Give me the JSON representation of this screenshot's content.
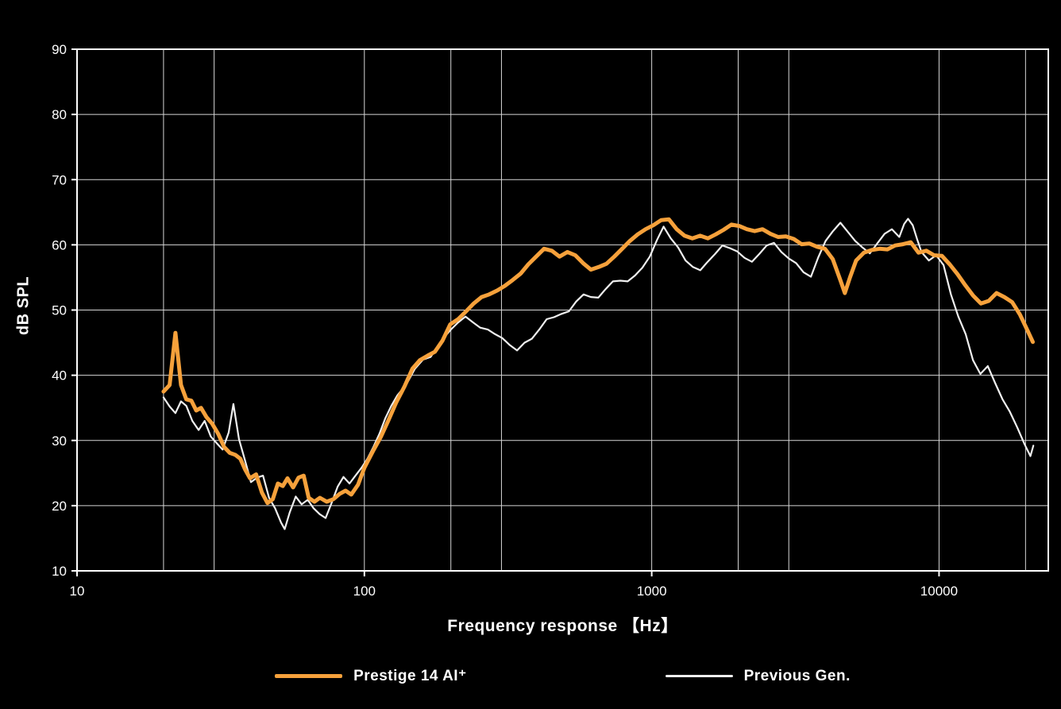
{
  "colors": {
    "background": "#000000",
    "grid": "#d6d6d6",
    "axis": "#ffffff",
    "text": "#ffffff",
    "series_prestige": "#F6A13B",
    "series_previous": "#EFEFEF"
  },
  "chart_data": {
    "type": "line",
    "title": "",
    "xlabel": "Frequency response 【Hz】",
    "ylabel": "dB SPL",
    "x_scale": "log",
    "xlim": [
      10,
      24000
    ],
    "ylim": [
      10,
      90
    ],
    "grid": true,
    "legend_position": "bottom",
    "y_ticks": [
      90,
      80,
      70,
      60,
      50,
      40,
      30,
      20,
      10
    ],
    "x_ticks": [
      {
        "value": 10,
        "label": "10"
      },
      {
        "value": 100,
        "label": "100"
      },
      {
        "value": 1000,
        "label": "1000"
      },
      {
        "value": 10000,
        "label": "10000"
      }
    ],
    "x_gridlines": [
      10,
      20,
      30,
      100,
      200,
      300,
      1000,
      2000,
      3000,
      10000,
      20000
    ],
    "series": [
      {
        "name": "Prestige 14 AI⁺",
        "color": "#F6A13B",
        "width": 5,
        "points": [
          [
            20,
            37.5
          ],
          [
            21,
            38.5
          ],
          [
            22,
            46.5
          ],
          [
            23,
            38.5
          ],
          [
            24,
            36.3
          ],
          [
            25,
            36.1
          ],
          [
            26,
            34.6
          ],
          [
            27,
            35
          ],
          [
            28.2,
            33.6
          ],
          [
            29.5,
            32.6
          ],
          [
            31,
            31
          ],
          [
            32.5,
            29
          ],
          [
            34,
            28.1
          ],
          [
            35.5,
            27.8
          ],
          [
            37,
            27.2
          ],
          [
            38.5,
            25.5
          ],
          [
            40,
            24.2
          ],
          [
            42,
            24.8
          ],
          [
            44,
            22
          ],
          [
            46,
            20.4
          ],
          [
            48,
            21
          ],
          [
            50,
            23.4
          ],
          [
            52,
            23
          ],
          [
            54,
            24.2
          ],
          [
            56.5,
            22.8
          ],
          [
            59,
            24.3
          ],
          [
            61.5,
            24.6
          ],
          [
            64,
            21.2
          ],
          [
            67,
            20.6
          ],
          [
            70,
            21.2
          ],
          [
            74,
            20.6
          ],
          [
            78,
            21
          ],
          [
            82,
            21.8
          ],
          [
            86,
            22.3
          ],
          [
            90,
            21.7
          ],
          [
            95,
            23.2
          ],
          [
            100,
            25.8
          ],
          [
            107,
            28.3
          ],
          [
            114,
            30.5
          ],
          [
            121,
            33
          ],
          [
            129,
            35.8
          ],
          [
            138,
            38.3
          ],
          [
            147,
            41
          ],
          [
            156,
            42.3
          ],
          [
            166,
            43
          ],
          [
            176,
            43.6
          ],
          [
            187,
            45.3
          ],
          [
            199,
            47.8
          ],
          [
            212,
            48.6
          ],
          [
            226,
            49.8
          ],
          [
            240,
            51
          ],
          [
            256,
            52
          ],
          [
            272,
            52.4
          ],
          [
            290,
            53
          ],
          [
            308,
            53.7
          ],
          [
            328,
            54.6
          ],
          [
            350,
            55.6
          ],
          [
            372,
            57
          ],
          [
            396,
            58.2
          ],
          [
            422,
            59.4
          ],
          [
            449,
            59.1
          ],
          [
            478,
            58.2
          ],
          [
            509,
            58.9
          ],
          [
            542,
            58.4
          ],
          [
            577,
            57.2
          ],
          [
            614,
            56.2
          ],
          [
            654,
            56.6
          ],
          [
            696,
            57.1
          ],
          [
            741,
            58.2
          ],
          [
            789,
            59.4
          ],
          [
            840,
            60.6
          ],
          [
            894,
            61.6
          ],
          [
            952,
            62.4
          ],
          [
            1013,
            63
          ],
          [
            1079,
            63.8
          ],
          [
            1148,
            63.9
          ],
          [
            1222,
            62.4
          ],
          [
            1301,
            61.4
          ],
          [
            1385,
            61
          ],
          [
            1474,
            61.4
          ],
          [
            1569,
            61
          ],
          [
            1670,
            61.6
          ],
          [
            1778,
            62.3
          ],
          [
            1893,
            63.1
          ],
          [
            2015,
            62.9
          ],
          [
            2145,
            62.4
          ],
          [
            2283,
            62.1
          ],
          [
            2430,
            62.4
          ],
          [
            2587,
            61.7
          ],
          [
            2754,
            61.2
          ],
          [
            2932,
            61.3
          ],
          [
            3121,
            60.9
          ],
          [
            3322,
            60.1
          ],
          [
            3536,
            60.2
          ],
          [
            3764,
            59.7
          ],
          [
            4007,
            59.4
          ],
          [
            4266,
            57.8
          ],
          [
            4541,
            54.5
          ],
          [
            4700,
            52.6
          ],
          [
            4900,
            55
          ],
          [
            5145,
            57.6
          ],
          [
            5477,
            58.8
          ],
          [
            5830,
            59.2
          ],
          [
            6206,
            59.4
          ],
          [
            6606,
            59.3
          ],
          [
            7032,
            59.9
          ],
          [
            7486,
            60.1
          ],
          [
            7969,
            60.4
          ],
          [
            8483,
            58.8
          ],
          [
            9030,
            59.1
          ],
          [
            9613,
            58.4
          ],
          [
            10233,
            58.3
          ],
          [
            10893,
            57
          ],
          [
            11596,
            55.5
          ],
          [
            12345,
            53.8
          ],
          [
            13141,
            52.2
          ],
          [
            13989,
            51
          ],
          [
            14891,
            51.4
          ],
          [
            15852,
            52.6
          ],
          [
            16874,
            52
          ],
          [
            17962,
            51.2
          ],
          [
            19120,
            49.3
          ],
          [
            20353,
            46.8
          ],
          [
            21200,
            45.1
          ]
        ]
      },
      {
        "name": "Previous Gen.",
        "color": "#EFEFEF",
        "width": 2.2,
        "points": [
          [
            20,
            36.6
          ],
          [
            21,
            35.2
          ],
          [
            22,
            34.2
          ],
          [
            23,
            36
          ],
          [
            24,
            35.3
          ],
          [
            25.2,
            33
          ],
          [
            26.5,
            31.6
          ],
          [
            27.8,
            33
          ],
          [
            29.2,
            30.6
          ],
          [
            30.6,
            29.6
          ],
          [
            32.1,
            28.6
          ],
          [
            33.7,
            31.2
          ],
          [
            35,
            35.6
          ],
          [
            36.6,
            30.2
          ],
          [
            38.4,
            27
          ],
          [
            40.3,
            23.6
          ],
          [
            42.3,
            24.3
          ],
          [
            44.4,
            24.6
          ],
          [
            46.6,
            21.2
          ],
          [
            48.9,
            19.6
          ],
          [
            51.3,
            17.4
          ],
          [
            52.8,
            16.4
          ],
          [
            55,
            19
          ],
          [
            57.7,
            21.4
          ],
          [
            60.5,
            20.2
          ],
          [
            63.5,
            20.9
          ],
          [
            66.6,
            19.6
          ],
          [
            69.9,
            18.7
          ],
          [
            73.3,
            18.1
          ],
          [
            76.9,
            20.4
          ],
          [
            80.7,
            22.9
          ],
          [
            84.6,
            24.4
          ],
          [
            88.8,
            23.4
          ],
          [
            93.1,
            24.6
          ],
          [
            97.7,
            25.8
          ],
          [
            102.5,
            27.2
          ],
          [
            107.5,
            29
          ],
          [
            112.8,
            31
          ],
          [
            118.3,
            33.4
          ],
          [
            124.1,
            35.3
          ],
          [
            130.2,
            36.9
          ],
          [
            140,
            38.6
          ],
          [
            150,
            41
          ],
          [
            160,
            42.4
          ],
          [
            170,
            42.8
          ],
          [
            180,
            44.4
          ],
          [
            191,
            46
          ],
          [
            200,
            47
          ],
          [
            212,
            48.1
          ],
          [
            225,
            49
          ],
          [
            239,
            48.1
          ],
          [
            253,
            47.3
          ],
          [
            269,
            47
          ],
          [
            285,
            46.3
          ],
          [
            302,
            45.7
          ],
          [
            321,
            44.6
          ],
          [
            340,
            43.8
          ],
          [
            361,
            45
          ],
          [
            383,
            45.6
          ],
          [
            406,
            47
          ],
          [
            431,
            48.6
          ],
          [
            457,
            48.9
          ],
          [
            485,
            49.4
          ],
          [
            515,
            49.8
          ],
          [
            546,
            51.3
          ],
          [
            579,
            52.4
          ],
          [
            614,
            52
          ],
          [
            652,
            51.9
          ],
          [
            691,
            53.2
          ],
          [
            733,
            54.4
          ],
          [
            778,
            54.5
          ],
          [
            825,
            54.4
          ],
          [
            875,
            55.3
          ],
          [
            928,
            56.5
          ],
          [
            985,
            58.2
          ],
          [
            1045,
            60.8
          ],
          [
            1100,
            62.8
          ],
          [
            1165,
            61
          ],
          [
            1236,
            59.6
          ],
          [
            1311,
            57.6
          ],
          [
            1391,
            56.6
          ],
          [
            1476,
            56.1
          ],
          [
            1566,
            57.4
          ],
          [
            1661,
            58.6
          ],
          [
            1762,
            59.9
          ],
          [
            1869,
            59.5
          ],
          [
            1983,
            59
          ],
          [
            2104,
            58
          ],
          [
            2232,
            57.4
          ],
          [
            2368,
            58.6
          ],
          [
            2512,
            59.9
          ],
          [
            2665,
            60.3
          ],
          [
            2827,
            58.9
          ],
          [
            2999,
            57.9
          ],
          [
            3182,
            57.2
          ],
          [
            3375,
            55.8
          ],
          [
            3581,
            55.1
          ],
          [
            3799,
            58.1
          ],
          [
            4030,
            60.6
          ],
          [
            4275,
            62.1
          ],
          [
            4535,
            63.4
          ],
          [
            4811,
            62
          ],
          [
            5104,
            60.6
          ],
          [
            5414,
            59.6
          ],
          [
            5744,
            58.7
          ],
          [
            6093,
            60.2
          ],
          [
            6464,
            61.7
          ],
          [
            6857,
            62.4
          ],
          [
            7274,
            61.2
          ],
          [
            7560,
            63.2
          ],
          [
            7800,
            64
          ],
          [
            8100,
            63
          ],
          [
            8400,
            60.8
          ],
          [
            8685,
            58.9
          ],
          [
            9213,
            57.6
          ],
          [
            9774,
            58.4
          ],
          [
            10368,
            56.9
          ],
          [
            10999,
            52.4
          ],
          [
            11668,
            49
          ],
          [
            12378,
            46.3
          ],
          [
            13131,
            42.3
          ],
          [
            13930,
            40.2
          ],
          [
            14777,
            41.4
          ],
          [
            15676,
            38.8
          ],
          [
            16630,
            36.3
          ],
          [
            17641,
            34.4
          ],
          [
            18714,
            32
          ],
          [
            19853,
            29.4
          ],
          [
            20800,
            27.6
          ],
          [
            21300,
            29.2
          ]
        ]
      }
    ]
  }
}
